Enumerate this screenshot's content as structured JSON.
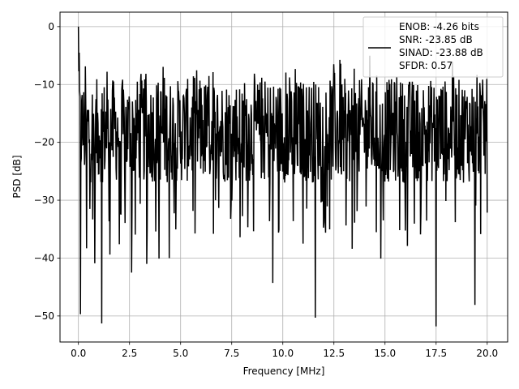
{
  "chart_data": {
    "type": "line",
    "title": "",
    "xlabel": "Frequency [MHz]",
    "ylabel": "PSD [dB]",
    "xlim": [
      -0.9,
      21.0
    ],
    "ylim": [
      -54.5,
      2.5
    ],
    "xticks": [
      0.0,
      2.5,
      5.0,
      7.5,
      10.0,
      12.5,
      15.0,
      17.5,
      20.0
    ],
    "xtick_labels": [
      "0.0",
      "2.5",
      "5.0",
      "7.5",
      "10.0",
      "12.5",
      "15.0",
      "17.5",
      "20.0"
    ],
    "yticks": [
      0,
      -10,
      -20,
      -30,
      -40,
      -50
    ],
    "ytick_labels": [
      "0",
      "−10",
      "−20",
      "−30",
      "−40",
      "−50"
    ],
    "grid": true,
    "legend_placement": "top-right",
    "legend_lines": [
      "ENOB: -4.26 bits",
      "SNR: -23.85 dB",
      "SINAD: -23.88 dB",
      "SFDR: 0.57"
    ],
    "series": [
      {
        "color": "#000000",
        "x_range": [
          0.0,
          20.0
        ],
        "num_points": 1000,
        "typical_band_db": [
          -27,
          -9
        ],
        "upper_peak_db": -5,
        "peaks": [
          {
            "x": 0.0,
            "y": 0.0
          },
          {
            "x": 0.05,
            "y": -4.5
          },
          {
            "x": 0.1,
            "y": -2.0
          }
        ],
        "notches": [
          {
            "x": 0.1,
            "y": -49.7
          },
          {
            "x": 0.4,
            "y": -38.3
          },
          {
            "x": 0.8,
            "y": -40.9
          },
          {
            "x": 1.15,
            "y": -51.3
          },
          {
            "x": 1.55,
            "y": -39.4
          },
          {
            "x": 2.0,
            "y": -37.6
          },
          {
            "x": 2.6,
            "y": -42.5
          },
          {
            "x": 3.35,
            "y": -41.0
          },
          {
            "x": 3.95,
            "y": -40.1
          },
          {
            "x": 4.45,
            "y": -40.0
          },
          {
            "x": 6.6,
            "y": -35.8
          },
          {
            "x": 7.9,
            "y": -36.4
          },
          {
            "x": 9.5,
            "y": -44.3
          },
          {
            "x": 11.0,
            "y": -37.5
          },
          {
            "x": 11.6,
            "y": -50.3
          },
          {
            "x": 13.4,
            "y": -38.4
          },
          {
            "x": 14.8,
            "y": -40.1
          },
          {
            "x": 16.1,
            "y": -37.9
          },
          {
            "x": 17.5,
            "y": -51.8
          },
          {
            "x": 19.4,
            "y": -48.1
          }
        ]
      }
    ]
  }
}
